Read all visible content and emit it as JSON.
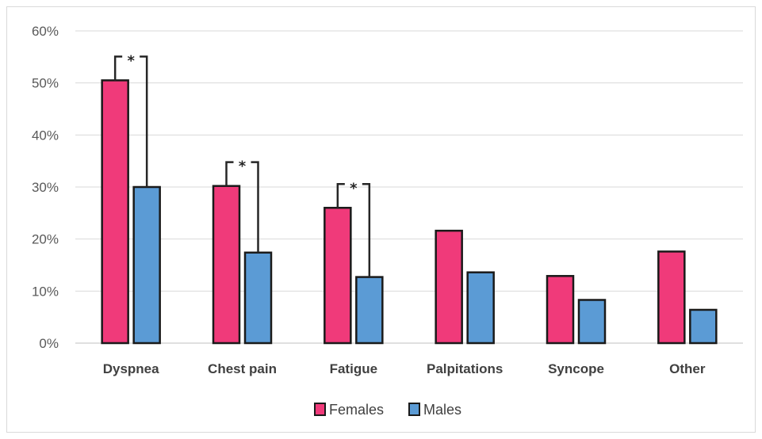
{
  "chart_data": {
    "type": "bar",
    "categories": [
      "Dyspnea",
      "Chest pain",
      "Fatigue",
      "Palpitations",
      "Syncope",
      "Other"
    ],
    "series": [
      {
        "name": "Females",
        "values": [
          50.5,
          30.2,
          26.0,
          21.6,
          12.9,
          17.6
        ],
        "color": "#f03a7a"
      },
      {
        "name": "Males",
        "values": [
          30.0,
          17.4,
          12.7,
          13.6,
          8.3,
          6.4
        ],
        "color": "#5b9bd5"
      }
    ],
    "ylim": [
      0,
      60
    ],
    "yticks": [
      "0%",
      "10%",
      "20%",
      "30%",
      "40%",
      "50%",
      "60%"
    ],
    "grid": true,
    "legend": "bottom",
    "annotations": [
      {
        "label": "*",
        "category": "Dyspnea"
      },
      {
        "label": "*",
        "category": "Chest pain"
      },
      {
        "label": "*",
        "category": "Fatigue"
      }
    ]
  }
}
